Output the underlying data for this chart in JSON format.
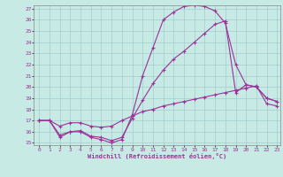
{
  "xlabel": "Windchill (Refroidissement éolien,°C)",
  "bg_color": "#c8eae4",
  "grid_color": "#a0cccc",
  "line_color": "#993399",
  "xmin": 0,
  "xmax": 23,
  "ymin": 15,
  "ymax": 27,
  "line1_x": [
    0,
    1,
    2,
    3,
    4,
    5,
    6,
    7,
    8,
    9,
    10,
    11,
    12,
    13,
    14,
    15,
    16,
    17,
    18,
    19,
    20,
    21,
    22,
    23
  ],
  "line1_y": [
    17.0,
    17.0,
    15.5,
    16.0,
    16.0,
    15.5,
    15.3,
    15.0,
    15.3,
    17.5,
    21.0,
    23.5,
    26.0,
    26.7,
    27.2,
    27.3,
    27.2,
    26.8,
    25.7,
    22.0,
    20.2,
    20.0,
    19.0,
    18.7
  ],
  "line2_x": [
    0,
    1,
    2,
    3,
    4,
    5,
    6,
    7,
    8,
    9,
    10,
    11,
    12,
    13,
    14,
    15,
    16,
    17,
    18,
    19,
    20,
    21,
    22,
    23
  ],
  "line2_y": [
    17.0,
    17.0,
    15.7,
    16.0,
    16.1,
    15.6,
    15.5,
    15.2,
    15.5,
    17.2,
    18.8,
    20.3,
    21.5,
    22.5,
    23.2,
    24.0,
    24.8,
    25.6,
    25.9,
    19.5,
    20.2,
    20.0,
    19.0,
    18.7
  ],
  "line3_x": [
    0,
    1,
    2,
    3,
    4,
    5,
    6,
    7,
    8,
    9,
    10,
    11,
    12,
    13,
    14,
    15,
    16,
    17,
    18,
    19,
    20,
    21,
    22,
    23
  ],
  "line3_y": [
    17.0,
    17.0,
    16.5,
    16.8,
    16.8,
    16.5,
    16.4,
    16.5,
    17.0,
    17.4,
    17.8,
    18.0,
    18.3,
    18.5,
    18.7,
    18.9,
    19.1,
    19.3,
    19.5,
    19.7,
    19.9,
    20.1,
    18.5,
    18.3
  ]
}
